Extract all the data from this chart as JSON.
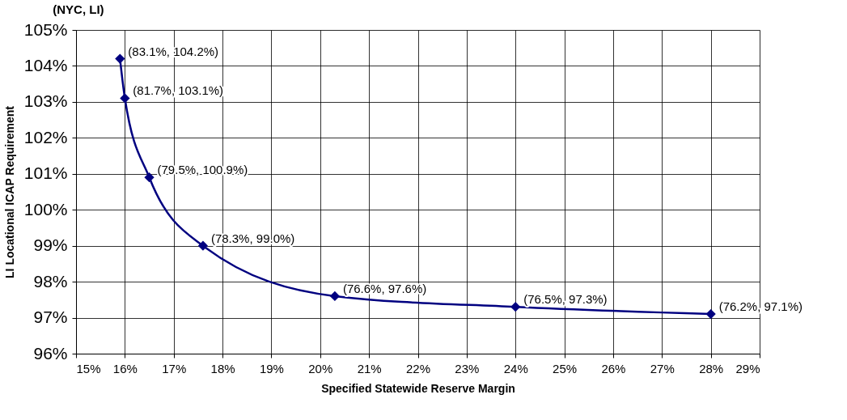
{
  "chart_data": {
    "type": "line",
    "title": "(NYC, LI)",
    "xlabel": "Specified Statewide Reserve Margin",
    "ylabel": "LI Locational ICAP Requirement",
    "x": [
      15.9,
      16.0,
      16.5,
      17.6,
      20.3,
      24.0,
      28.0
    ],
    "series": [
      {
        "color": "#000080",
        "values": [
          104.2,
          103.1,
          100.9,
          99.0,
          97.6,
          97.3,
          97.1
        ],
        "value_labels": [
          "(83.1%, 104.2%)",
          "(81.7%, 103.1%)",
          "(79.5%, 100.9%)",
          "(78.3%, 99.0%)",
          "(76.6%, 97.6%)",
          "(76.5%, 97.3%)",
          "(76.2%, 97.1%)"
        ]
      }
    ],
    "xlim": [
      15,
      29
    ],
    "ylim": [
      96,
      105
    ],
    "xticks": [
      {
        "value": 15,
        "label": "15%"
      },
      {
        "value": 16,
        "label": "16%"
      },
      {
        "value": 17,
        "label": "17%"
      },
      {
        "value": 18,
        "label": "18%"
      },
      {
        "value": 19,
        "label": "19%"
      },
      {
        "value": 20,
        "label": "20%"
      },
      {
        "value": 21,
        "label": "21%"
      },
      {
        "value": 22,
        "label": "22%"
      },
      {
        "value": 23,
        "label": "23%"
      },
      {
        "value": 24,
        "label": "24%"
      },
      {
        "value": 25,
        "label": "25%"
      },
      {
        "value": 26,
        "label": "26%"
      },
      {
        "value": 27,
        "label": "27%"
      },
      {
        "value": 28,
        "label": "28%"
      },
      {
        "value": 29,
        "label": "29%"
      }
    ],
    "yticks": [
      {
        "value": 96,
        "label": "96%"
      },
      {
        "value": 97,
        "label": "97%"
      },
      {
        "value": 98,
        "label": "98%"
      },
      {
        "value": 99,
        "label": "99%"
      },
      {
        "value": 100,
        "label": "100%"
      },
      {
        "value": 101,
        "label": "101%"
      },
      {
        "value": 102,
        "label": "102%"
      },
      {
        "value": 103,
        "label": "103%"
      },
      {
        "value": 104,
        "label": "104%"
      },
      {
        "value": 105,
        "label": "105%"
      }
    ],
    "grid": true,
    "marker": "diamond",
    "line_style": "solid"
  }
}
